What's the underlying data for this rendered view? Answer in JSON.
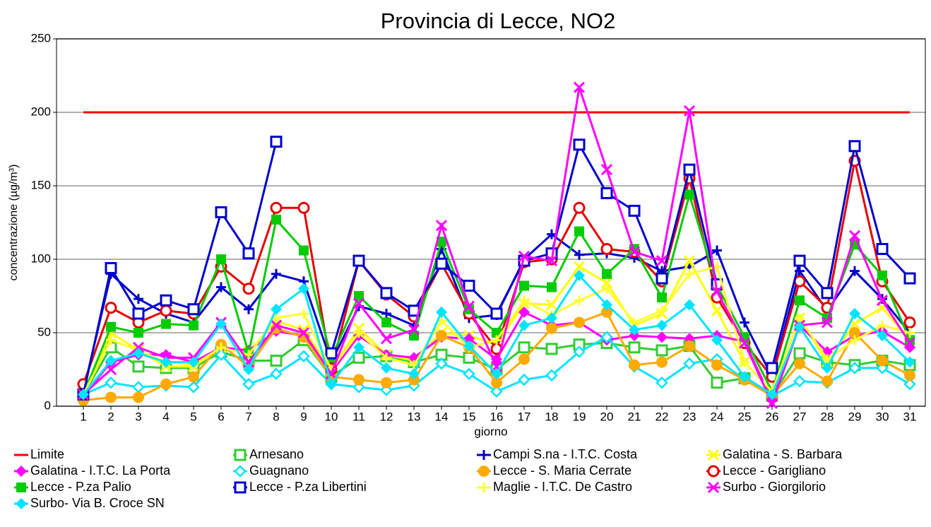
{
  "chart_data": {
    "type": "line",
    "title": "Provincia di Lecce, NO2",
    "x_label": "giorno",
    "y_label": "concentrazione (µg/m³)",
    "categories": [
      "1",
      "2",
      "3",
      "4",
      "5",
      "6",
      "7",
      "8",
      "9",
      "10",
      "11",
      "12",
      "13",
      "14",
      "15",
      "16",
      "17",
      "18",
      "19",
      "20",
      "21",
      "22",
      "23",
      "24",
      "25",
      "26",
      "27",
      "28",
      "29",
      "30",
      "31"
    ],
    "ylim": [
      0,
      250
    ],
    "yticks": [
      0,
      50,
      100,
      150,
      200,
      250
    ],
    "grid": true,
    "series": [
      {
        "name": "Limite",
        "color": "#ff0000",
        "marker": "none",
        "values": [
          200,
          200,
          200,
          200,
          200,
          200,
          200,
          200,
          200,
          200,
          200,
          200,
          200,
          200,
          200,
          200,
          200,
          200,
          200,
          200,
          200,
          200,
          200,
          200,
          200,
          200,
          200,
          200,
          200,
          200,
          200
        ]
      },
      {
        "name": "Arnesano",
        "color": "#33cc33",
        "marker": "square-open",
        "values": [
          8,
          40,
          27,
          26,
          26,
          37,
          31,
          31,
          45,
          20,
          33,
          34,
          30,
          35,
          33,
          25,
          40,
          39,
          42,
          43,
          40,
          38,
          41,
          16,
          19,
          7,
          36,
          30,
          28,
          31,
          28
        ]
      },
      {
        "name": "Campi S.na - I.T.C.  Costa",
        "color": "#0000cc",
        "marker": "plus",
        "values": [
          10,
          90,
          73,
          63,
          57,
          81,
          66,
          90,
          85,
          30,
          68,
          63,
          55,
          107,
          60,
          62,
          100,
          117,
          103,
          104,
          101,
          92,
          95,
          106,
          57,
          20,
          92,
          65,
          92,
          73,
          50
        ]
      },
      {
        "name": "Galatina - S. Barbara",
        "color": "#ffff00",
        "marker": "x",
        "values": [
          8,
          50,
          38,
          27,
          27,
          40,
          37,
          58,
          52,
          25,
          53,
          35,
          31,
          50,
          48,
          42,
          70,
          69,
          95,
          84,
          55,
          63,
          99,
          65,
          30,
          10,
          60,
          30,
          56,
          67,
          45
        ]
      },
      {
        "name": "Galatina - I.T.C.  La Porta",
        "color": "#ff00ff",
        "marker": "diamond",
        "values": [
          7,
          30,
          35,
          35,
          30,
          40,
          38,
          51,
          48,
          23,
          48,
          35,
          33,
          47,
          46,
          32,
          64,
          55,
          57,
          45,
          48,
          47,
          46,
          48,
          44,
          4,
          55,
          37,
          48,
          51,
          40
        ]
      },
      {
        "name": "Guagnano",
        "color": "#00e5ff",
        "marker": "diamond-open",
        "values": [
          8,
          16,
          13,
          14,
          13,
          35,
          15,
          22,
          34,
          15,
          13,
          11,
          14,
          29,
          22,
          10,
          18,
          21,
          37,
          47,
          27,
          16,
          29,
          32,
          18,
          7,
          17,
          16,
          26,
          26,
          15
        ]
      },
      {
        "name": "Lecce - S. Maria Cerrate",
        "color": "#ffaa00",
        "marker": "circle",
        "values": [
          4,
          6,
          6,
          15,
          20,
          42,
          27,
          53,
          47,
          20,
          18,
          16,
          18,
          48,
          40,
          16,
          32,
          53,
          57,
          64,
          28,
          30,
          41,
          28,
          18,
          7,
          29,
          17,
          50,
          31,
          21
        ]
      },
      {
        "name": "Lecce - Garigliano",
        "color": "#e60000",
        "marker": "circle-open",
        "values": [
          15,
          67,
          57,
          65,
          63,
          95,
          80,
          135,
          135,
          25,
          99,
          76,
          61,
          97,
          63,
          39,
          98,
          100,
          135,
          107,
          105,
          85,
          155,
          74,
          43,
          20,
          85,
          67,
          167,
          85,
          57
        ]
      },
      {
        "name": "Lecce - P.za Palio",
        "color": "#00cc00",
        "marker": "square",
        "values": [
          8,
          54,
          50,
          56,
          55,
          100,
          36,
          127,
          106,
          33,
          75,
          57,
          48,
          112,
          66,
          50,
          82,
          81,
          119,
          90,
          107,
          74,
          144,
          82,
          47,
          10,
          72,
          60,
          110,
          89,
          45
        ]
      },
      {
        "name": " Lecce - P.za Libertini",
        "color": "#0000cc",
        "marker": "square-open",
        "values": [
          8,
          94,
          63,
          72,
          66,
          132,
          104,
          180,
          null,
          36,
          99,
          77,
          65,
          97,
          82,
          63,
          99,
          104,
          178,
          145,
          133,
          87,
          161,
          83,
          null,
          26,
          99,
          77,
          177,
          107,
          87
        ]
      },
      {
        "name": "Maglie - I.T.C. De Castro",
        "color": "#ffff33",
        "marker": "plus",
        "values": [
          8,
          45,
          38,
          30,
          28,
          40,
          35,
          60,
          63,
          25,
          50,
          33,
          28,
          58,
          40,
          45,
          72,
          62,
          72,
          80,
          57,
          65,
          90,
          95,
          30,
          10,
          60,
          32,
          45,
          55,
          50
        ]
      },
      {
        "name": "Surbo - Giorgilorio",
        "color": "#ff00ff",
        "marker": "x",
        "values": [
          8,
          25,
          40,
          33,
          33,
          57,
          30,
          55,
          50,
          22,
          70,
          46,
          52,
          123,
          68,
          27,
          102,
          99,
          217,
          161,
          105,
          99,
          201,
          78,
          43,
          2,
          55,
          57,
          116,
          72,
          43
        ]
      },
      {
        "name": "Surbo- Via B. Croce SN",
        "color": "#00e5ff",
        "marker": "diamond",
        "values": [
          8,
          31,
          36,
          30,
          30,
          56,
          25,
          66,
          80,
          15,
          40,
          26,
          22,
          64,
          41,
          22,
          55,
          60,
          89,
          69,
          52,
          55,
          69,
          45,
          20,
          8,
          54,
          26,
          63,
          48,
          30
        ]
      }
    ]
  }
}
